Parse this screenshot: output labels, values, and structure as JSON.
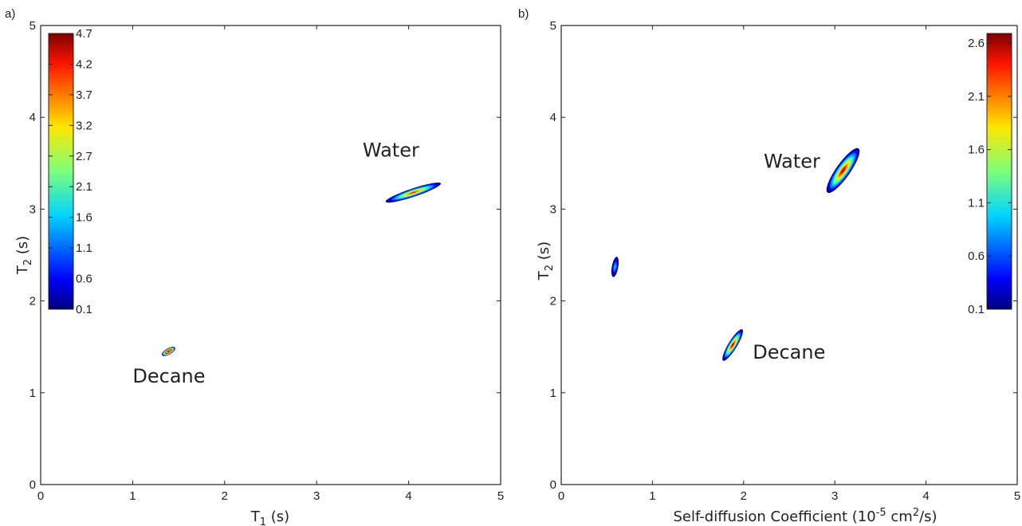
{
  "chart_data": [
    {
      "type": "heatmap",
      "panel_label": "a)",
      "xlabel_main": "T",
      "xlabel_sub": "1",
      "xlabel_rest": " (s)",
      "ylabel_main": "T",
      "ylabel_sub": "2",
      "ylabel_rest": " (s)",
      "xlim": [
        0,
        5
      ],
      "ylim": [
        0,
        5
      ],
      "xticks": [
        "0",
        "1",
        "2",
        "3",
        "4",
        "5"
      ],
      "yticks": [
        "0",
        "1",
        "2",
        "3",
        "4",
        "5"
      ],
      "colorbar": {
        "placement": "top-left",
        "ticks": [
          "4.7",
          "4.2",
          "3.7",
          "3.2",
          "2.7",
          "2.1",
          "1.6",
          "1.1",
          "0.6",
          "0.1"
        ]
      },
      "peaks": [
        {
          "label": "Water",
          "x_center": 4.05,
          "y_center": 3.18,
          "x_extent": [
            3.75,
            4.35
          ],
          "y_extent": [
            3.08,
            3.28
          ],
          "max_value": 2.3
        },
        {
          "label": "Decane",
          "x_center": 1.39,
          "y_center": 1.45,
          "x_extent": [
            1.32,
            1.46
          ],
          "y_extent": [
            1.41,
            1.49
          ],
          "max_value": 4.7
        }
      ],
      "annotations": [
        {
          "text": "Water",
          "x": 3.5,
          "y": 3.57
        },
        {
          "text": "Decane",
          "x": 1.0,
          "y": 1.11
        }
      ]
    },
    {
      "type": "heatmap",
      "panel_label": "b)",
      "xlabel_main": "Self-diffusion Coefficient (10",
      "xlabel_sup1": "-5",
      "xlabel_mid": " cm",
      "xlabel_sup2": "2",
      "xlabel_rest": "/s)",
      "ylabel_main": "T",
      "ylabel_sub": "2",
      "ylabel_rest": " (s)",
      "xlim": [
        0,
        5
      ],
      "ylim": [
        0,
        5
      ],
      "xticks": [
        "0",
        "1",
        "2",
        "3",
        "4",
        "5"
      ],
      "yticks": [
        "0",
        "1",
        "2",
        "3",
        "4",
        "5"
      ],
      "colorbar": {
        "placement": "top-right",
        "ticks": [
          "2.6",
          "2.1",
          "1.6",
          "1.1",
          "0.6",
          "0.1"
        ]
      },
      "peaks": [
        {
          "label": "Water",
          "x_center": 3.09,
          "y_center": 3.42,
          "x_extent": [
            2.93,
            3.27
          ],
          "y_extent": [
            3.18,
            3.66
          ],
          "max_value": 2.6
        },
        {
          "label": "Decane",
          "x_center": 1.88,
          "y_center": 1.52,
          "x_extent": [
            1.77,
            1.98
          ],
          "y_extent": [
            1.35,
            1.69
          ],
          "max_value": 2.6
        },
        {
          "label": "",
          "x_center": 0.59,
          "y_center": 2.37,
          "x_extent": [
            0.57,
            0.61
          ],
          "y_extent": [
            2.26,
            2.48
          ],
          "max_value": 0.5
        }
      ],
      "annotations": [
        {
          "text": "Water",
          "x": 2.22,
          "y": 3.45
        },
        {
          "text": "Decane",
          "x": 2.1,
          "y": 1.37
        }
      ]
    }
  ]
}
